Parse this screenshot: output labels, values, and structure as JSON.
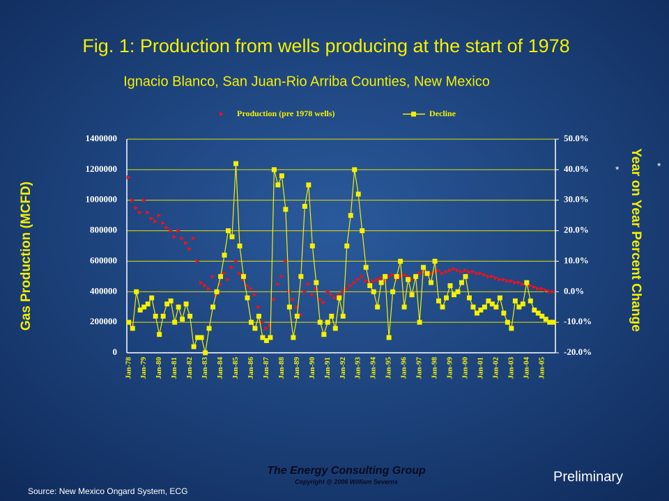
{
  "chart_data": {
    "type": "scatter-line",
    "title": "Fig. 1: Production from wells producing at the start of 1978",
    "subtitle": "Ignacio Blanco, San Juan-Rio Arriba Counties, New Mexico",
    "y_label": "Gas Production (MCFD)",
    "y2_label": "Year on Year Percent Change",
    "annotations": [
      "*",
      "*"
    ],
    "footer": {
      "company": "The Energy Consulting Group",
      "copyright": "Copyright @ 2006 William Severns",
      "status": "Preliminary",
      "source": "Source:  New Mexico Ongard System, ECG"
    },
    "categories": [
      "Jan-78",
      null,
      null,
      null,
      "Jan-79",
      null,
      null,
      null,
      "Jan-80",
      null,
      null,
      null,
      "Jan-81",
      null,
      null,
      null,
      "Jan-82",
      null,
      null,
      null,
      "Jan-83",
      null,
      null,
      null,
      "Jan-84",
      null,
      null,
      null,
      "Jan-85",
      null,
      null,
      null,
      "Jan-86",
      null,
      null,
      null,
      "Jan-87",
      null,
      null,
      null,
      "Jan-88",
      null,
      null,
      null,
      "Jan-89",
      null,
      null,
      null,
      "Jan-90",
      null,
      null,
      null,
      "Jan-91",
      null,
      null,
      null,
      "Jan-92",
      null,
      null,
      null,
      "Jan-93",
      null,
      null,
      null,
      "Jan-94",
      null,
      null,
      null,
      "Jan-95",
      null,
      null,
      null,
      "Jan-96",
      null,
      null,
      null,
      "Jan-97",
      null,
      null,
      null,
      "Jan-98",
      null,
      null,
      null,
      "Jan-99",
      null,
      null,
      null,
      "Jan-00",
      null,
      null,
      null,
      "Jan-01",
      null,
      null,
      null,
      "Jan-02",
      null,
      null,
      null,
      "Jan-03",
      null,
      null,
      null,
      "Jan-04",
      null,
      null,
      null,
      "Jan-05",
      null,
      null,
      null
    ],
    "series": [
      {
        "name": "Production (pre 1978 wells)",
        "color": "#e8141e",
        "values": [
          1150000,
          1000000,
          950000,
          920000,
          1000000,
          920000,
          880000,
          860000,
          900000,
          850000,
          820000,
          800000,
          760000,
          800000,
          750000,
          720000,
          680000,
          750000,
          600000,
          460000,
          440000,
          420000,
          500000,
          380000,
          450000,
          520000,
          480000,
          560000,
          600000,
          520000,
          480000,
          440000,
          420000,
          380000,
          300000,
          200000,
          160000,
          180000,
          350000,
          450000,
          500000,
          600000,
          400000,
          350000,
          300000,
          250000,
          400000,
          450000,
          380000,
          420000,
          350000,
          330000,
          400000,
          380000,
          360000,
          380000,
          400000,
          420000,
          440000,
          460000,
          480000,
          500000,
          470000,
          460000,
          470000,
          480000,
          490000,
          470000,
          500000,
          510000,
          480000,
          500000,
          510000,
          500000,
          480000,
          500000,
          520000,
          530000,
          510000,
          520000,
          530000,
          540000,
          520000,
          530000,
          540000,
          550000,
          540000,
          530000,
          540000,
          530000,
          530000,
          520000,
          520000,
          510000,
          500000,
          500000,
          490000,
          480000,
          480000,
          470000,
          470000,
          460000,
          460000,
          450000,
          450000,
          440000,
          430000,
          420000,
          420000,
          410000,
          400000,
          400000
        ]
      },
      {
        "name": "Decline",
        "color": "#f5f000",
        "axis": "y2",
        "values": [
          -10,
          -12,
          0,
          -6,
          -5,
          -4,
          -2,
          -8,
          -14,
          -8,
          -4,
          -3,
          -10,
          -5,
          -9,
          -4,
          -8,
          -18,
          -15,
          -15,
          -20,
          -12,
          -5,
          0,
          5,
          12,
          20,
          18,
          42,
          15,
          5,
          -2,
          -10,
          -12,
          -8,
          -15,
          -16,
          -15,
          40,
          35,
          38,
          27,
          -5,
          -15,
          -8,
          5,
          28,
          35,
          15,
          3,
          -10,
          -14,
          -10,
          -8,
          -12,
          -2,
          -8,
          15,
          25,
          40,
          32,
          20,
          8,
          2,
          0,
          -5,
          3,
          5,
          -15,
          0,
          5,
          10,
          -5,
          4,
          -1,
          5,
          -10,
          8,
          6,
          3,
          10,
          -3,
          -5,
          -2,
          2,
          -1,
          0,
          3,
          5,
          -2,
          -5,
          -7,
          -6,
          -5,
          -3,
          -4,
          -5,
          -2,
          -7,
          -10,
          -12,
          -3,
          -5,
          -4,
          3,
          -3,
          -6,
          -7,
          -8,
          -9,
          -10,
          -10
        ]
      }
    ],
    "ylim": [
      0,
      1400000
    ],
    "yticks": [
      0,
      200000,
      400000,
      600000,
      800000,
      1000000,
      1200000,
      1400000
    ],
    "y2lim": [
      -20,
      50
    ],
    "y2ticks": [
      {
        "value": -20,
        "label": "-20.0%"
      },
      {
        "value": -10,
        "label": "-10.0%"
      },
      {
        "value": 0,
        "label": "0.0%"
      },
      {
        "value": 10,
        "label": "10.0%"
      },
      {
        "value": 20,
        "label": "20.0%"
      },
      {
        "value": 30,
        "label": "30.0%"
      },
      {
        "value": 40,
        "label": "40.0%"
      },
      {
        "value": 50,
        "label": "50.0%"
      }
    ],
    "grid": true,
    "legend": "top"
  }
}
